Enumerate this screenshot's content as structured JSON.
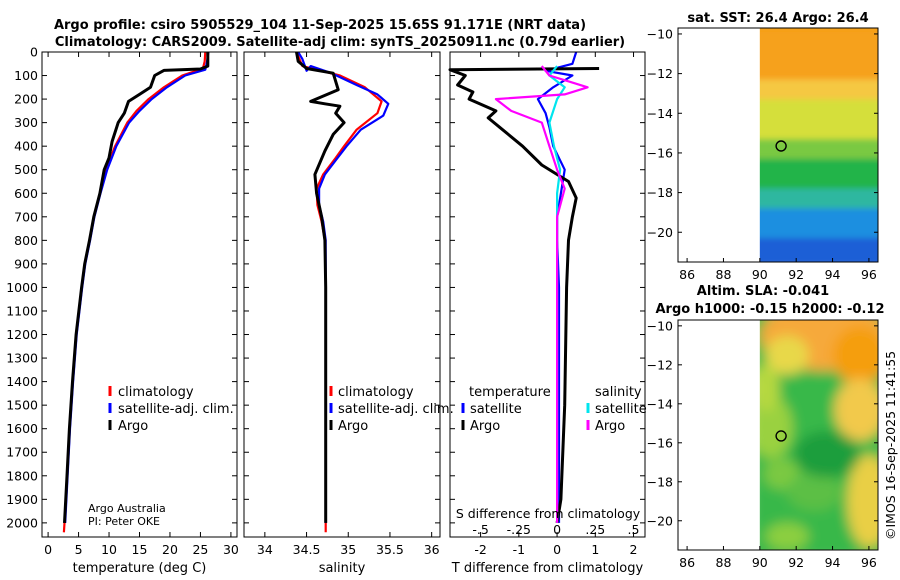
{
  "figure": {
    "title_line1": "Argo profile: csiro 5905529_104 11-Sep-2025 15.65S 91.171E (NRT data)",
    "title_line2": "Climatology: CARS2009. Satellite-adj clim: synTS_20250911.nc (0.79d earlier)",
    "credit_line1": "Argo Australia",
    "credit_line2": "PI: Peter OKE",
    "watermark": "©IMOS 16-Sep-2025 11:41:55",
    "colors": {
      "argo": "#000000",
      "climatology": "#ff0000",
      "satellite": "#0000ff",
      "sat_salinity": "#00e5ee",
      "argo_salinity": "#ff00ff"
    }
  },
  "chart_data": [
    {
      "id": "temperature",
      "type": "line",
      "xlabel": "temperature (deg C)",
      "ylabel": "",
      "xlim": [
        -1,
        31
      ],
      "ylim": [
        2060,
        0
      ],
      "xticks": [
        0,
        5,
        10,
        15,
        20,
        25,
        30
      ],
      "yticks": [
        0,
        100,
        200,
        300,
        400,
        500,
        600,
        700,
        800,
        900,
        1000,
        1100,
        1200,
        1300,
        1400,
        1500,
        1600,
        1700,
        1800,
        1900,
        2000
      ],
      "legend": [
        "climatology",
        "satellite-adj. clim.",
        "Argo"
      ],
      "series": [
        {
          "name": "climatology",
          "color": "#ff0000",
          "points": [
            [
              25.8,
              0
            ],
            [
              25.7,
              40
            ],
            [
              25.4,
              70
            ],
            [
              22,
              100
            ],
            [
              19,
              150
            ],
            [
              16.5,
              200
            ],
            [
              14.5,
              250
            ],
            [
              13,
              300
            ],
            [
              11,
              400
            ],
            [
              9.5,
              500
            ],
            [
              8.5,
              600
            ],
            [
              7.5,
              700
            ],
            [
              6.8,
              800
            ],
            [
              6,
              900
            ],
            [
              5.5,
              1000
            ],
            [
              4.6,
              1200
            ],
            [
              4,
              1400
            ],
            [
              3.5,
              1600
            ],
            [
              3.1,
              1800
            ],
            [
              2.7,
              2000
            ],
            [
              2.6,
              2040
            ]
          ]
        },
        {
          "name": "satellite-adj. clim.",
          "color": "#0000ff",
          "points": [
            [
              26.3,
              0
            ],
            [
              26.1,
              40
            ],
            [
              25.8,
              75
            ],
            [
              22.5,
              100
            ],
            [
              19.5,
              150
            ],
            [
              17,
              200
            ],
            [
              15,
              250
            ],
            [
              13.3,
              300
            ],
            [
              11.2,
              400
            ],
            [
              9.7,
              500
            ],
            [
              8.6,
              600
            ],
            [
              7.6,
              700
            ],
            [
              6.9,
              800
            ],
            [
              6.1,
              900
            ],
            [
              5.6,
              1000
            ],
            [
              4.7,
              1200
            ],
            [
              4.1,
              1400
            ],
            [
              3.6,
              1600
            ],
            [
              3.2,
              1800
            ],
            [
              2.8,
              2000
            ]
          ]
        },
        {
          "name": "Argo",
          "color": "#000000",
          "points": [
            [
              26.2,
              0
            ],
            [
              26.2,
              60
            ],
            [
              25,
              72
            ],
            [
              19,
              78
            ],
            [
              17.5,
              100
            ],
            [
              16.8,
              150
            ],
            [
              15,
              180
            ],
            [
              13.2,
              210
            ],
            [
              12.5,
              260
            ],
            [
              11.5,
              300
            ],
            [
              10.5,
              380
            ],
            [
              10,
              450
            ],
            [
              9.2,
              500
            ],
            [
              8.5,
              600
            ],
            [
              7.5,
              700
            ],
            [
              6.8,
              800
            ],
            [
              6,
              900
            ],
            [
              5.5,
              1000
            ],
            [
              4.6,
              1200
            ],
            [
              4,
              1400
            ],
            [
              3.5,
              1600
            ],
            [
              3.1,
              1800
            ],
            [
              2.7,
              2000
            ]
          ]
        }
      ]
    },
    {
      "id": "salinity",
      "type": "line",
      "xlabel": "salinity",
      "xlim": [
        33.75,
        36.1
      ],
      "ylim": [
        2060,
        0
      ],
      "xticks": [
        34,
        34.5,
        35,
        35.5,
        36
      ],
      "legend": [
        "climatology",
        "satellite-adj. clim.",
        "Argo"
      ],
      "series": [
        {
          "name": "climatology",
          "color": "#ff0000",
          "points": [
            [
              34.38,
              0
            ],
            [
              34.45,
              60
            ],
            [
              34.9,
              100
            ],
            [
              35.2,
              150
            ],
            [
              35.4,
              210
            ],
            [
              35.35,
              260
            ],
            [
              35.1,
              330
            ],
            [
              34.95,
              400
            ],
            [
              34.85,
              450
            ],
            [
              34.7,
              520
            ],
            [
              34.62,
              580
            ],
            [
              34.63,
              650
            ],
            [
              34.68,
              720
            ],
            [
              34.72,
              800
            ],
            [
              34.73,
              1000
            ],
            [
              34.73,
              1500
            ],
            [
              34.73,
              2000
            ],
            [
              34.73,
              2040
            ]
          ]
        },
        {
          "name": "satellite-adj. clim.",
          "color": "#0000ff",
          "points": [
            [
              34.4,
              0
            ],
            [
              34.45,
              30
            ],
            [
              34.5,
              80
            ],
            [
              34.55,
              60
            ],
            [
              34.8,
              90
            ],
            [
              35.1,
              140
            ],
            [
              35.35,
              180
            ],
            [
              35.48,
              220
            ],
            [
              35.42,
              270
            ],
            [
              35.15,
              330
            ],
            [
              34.98,
              400
            ],
            [
              34.85,
              460
            ],
            [
              34.72,
              520
            ],
            [
              34.65,
              580
            ],
            [
              34.65,
              650
            ],
            [
              34.7,
              720
            ],
            [
              34.73,
              800
            ],
            [
              34.73,
              1200
            ],
            [
              34.73,
              2000
            ]
          ]
        },
        {
          "name": "Argo",
          "color": "#000000",
          "points": [
            [
              34.38,
              0
            ],
            [
              34.4,
              40
            ],
            [
              34.5,
              70
            ],
            [
              34.82,
              90
            ],
            [
              34.88,
              160
            ],
            [
              34.55,
              210
            ],
            [
              34.72,
              220
            ],
            [
              34.9,
              230
            ],
            [
              34.85,
              260
            ],
            [
              34.95,
              300
            ],
            [
              34.82,
              350
            ],
            [
              34.72,
              420
            ],
            [
              34.6,
              520
            ],
            [
              34.62,
              600
            ],
            [
              34.68,
              700
            ],
            [
              34.72,
              800
            ],
            [
              34.73,
              1000
            ],
            [
              34.73,
              1500
            ],
            [
              34.73,
              2000
            ]
          ]
        }
      ]
    },
    {
      "id": "differences",
      "type": "line",
      "xlabel": "T difference from climatology",
      "xlabel_top": "S difference from climatology",
      "xlim": [
        -2.8,
        2.3
      ],
      "ylim": [
        2060,
        0
      ],
      "xticks": [
        -2,
        -1,
        0,
        1,
        2
      ],
      "xticks_top": [
        -0.5,
        -0.25,
        0,
        0.25,
        0.5
      ],
      "s_scale": 4,
      "legend_titles": [
        "temperature",
        "salinity"
      ],
      "legend": [
        "satellite",
        "Argo",
        "satellite",
        "Argo"
      ],
      "series": [
        {
          "name": "temperature satellite",
          "color": "#0000ff",
          "points": [
            [
              0.5,
              0
            ],
            [
              0.4,
              50
            ],
            [
              -0.3,
              80
            ],
            [
              0.4,
              100
            ],
            [
              -0.1,
              150
            ],
            [
              -0.5,
              200
            ],
            [
              -0.3,
              260
            ],
            [
              -0.2,
              320
            ],
            [
              -0.1,
              400
            ],
            [
              0.2,
              500
            ],
            [
              0.1,
              600
            ],
            [
              0,
              700
            ],
            [
              0,
              800
            ],
            [
              0.05,
              1000
            ],
            [
              0.05,
              1500
            ],
            [
              0.05,
              2000
            ]
          ]
        },
        {
          "name": "temperature Argo",
          "color": "#000000",
          "points": [
            [
              1.1,
              70
            ],
            [
              -2.8,
              75
            ],
            [
              -2.4,
              100
            ],
            [
              -2.6,
              140
            ],
            [
              -2.2,
              170
            ],
            [
              -2.3,
              200
            ],
            [
              -1.6,
              250
            ],
            [
              -1.8,
              280
            ],
            [
              -1.5,
              320
            ],
            [
              -0.9,
              400
            ],
            [
              -0.4,
              480
            ],
            [
              0.3,
              550
            ],
            [
              0.5,
              620
            ],
            [
              0.4,
              700
            ],
            [
              0.3,
              800
            ],
            [
              0.25,
              1000
            ],
            [
              0.2,
              1500
            ],
            [
              0.1,
              1900
            ],
            [
              0,
              2000
            ]
          ]
        },
        {
          "name": "salinity satellite",
          "color": "#00e5ee",
          "points": [
            [
              0,
              60
            ],
            [
              -0.05,
              100
            ],
            [
              0.05,
              150
            ],
            [
              0,
              200
            ],
            [
              -0.05,
              300
            ],
            [
              -0.02,
              400
            ],
            [
              0.02,
              500
            ],
            [
              0,
              600
            ],
            [
              0,
              800
            ],
            [
              0,
              2000
            ]
          ]
        },
        {
          "name": "salinity Argo",
          "color": "#ff00ff",
          "points": [
            [
              -0.1,
              60
            ],
            [
              -0.05,
              100
            ],
            [
              0.1,
              130
            ],
            [
              0.2,
              150
            ],
            [
              0.05,
              180
            ],
            [
              -0.4,
              200
            ],
            [
              -0.3,
              250
            ],
            [
              -0.1,
              300
            ],
            [
              -0.05,
              400
            ],
            [
              0,
              500
            ],
            [
              0.05,
              580
            ],
            [
              0,
              700
            ],
            [
              0,
              800
            ],
            [
              0,
              2000
            ]
          ]
        }
      ]
    },
    {
      "id": "sst_map",
      "type": "heatmap",
      "title": "sat. SST: 26.4 Argo: 26.4",
      "xlim": [
        85.5,
        96.5
      ],
      "ylim": [
        -21.5,
        -9.7
      ],
      "xticks": [
        86,
        88,
        90,
        92,
        94,
        96
      ],
      "yticks": [
        -10,
        -12,
        -14,
        -16,
        -18,
        -20
      ],
      "data_lon_range": [
        90,
        96.5
      ],
      "marker": [
        91.171,
        -15.65
      ],
      "bands": [
        {
          "lat_to": -10.0,
          "color": "#f59e0b"
        },
        {
          "lat_to": -12.5,
          "color": "#f6a11a"
        },
        {
          "lat_to": -13.5,
          "color": "#f5c842"
        },
        {
          "lat_to": -15.5,
          "color": "#d5df3a"
        },
        {
          "lat_to": -16.5,
          "color": "#7ac943"
        },
        {
          "lat_to": -18.0,
          "color": "#23b44a"
        },
        {
          "lat_to": -19.0,
          "color": "#2fb7a0"
        },
        {
          "lat_to": -20.5,
          "color": "#1e8fe0"
        },
        {
          "lat_to": -21.5,
          "color": "#1f5fd6"
        }
      ]
    },
    {
      "id": "sla_map",
      "type": "heatmap",
      "title_line1": "Altim. SLA: -0.041",
      "title_line2": "Argo h1000: -0.15 h2000: -0.12",
      "xlim": [
        85.5,
        96.5
      ],
      "ylim": [
        -21.5,
        -9.7
      ],
      "xticks": [
        86,
        88,
        90,
        92,
        94,
        96
      ],
      "yticks": [
        -10,
        -12,
        -14,
        -16,
        -18,
        -20
      ],
      "data_lon_range": [
        90,
        96.5
      ],
      "marker": [
        91.171,
        -15.65
      ]
    }
  ]
}
